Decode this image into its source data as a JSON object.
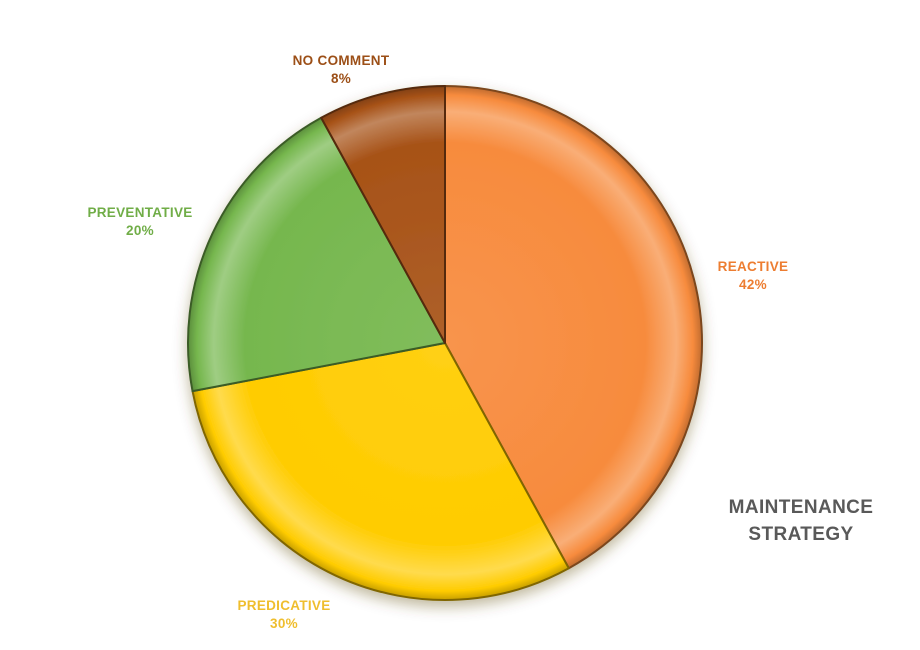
{
  "page": {
    "background_color": "#ffffff"
  },
  "chart_data": {
    "type": "pie",
    "title": "MAINTENANCE STRATEGY",
    "title_color": "#595959",
    "legend_position": "none",
    "start_angle_deg": 0,
    "direction": "clockwise",
    "total": 100,
    "slices": [
      {
        "label": "REACTIVE",
        "pct_label": "42%",
        "value": 42,
        "color": "#F78B3D",
        "label_color": "#ED7D31"
      },
      {
        "label": "PREDICATIVE",
        "pct_label": "30%",
        "value": 30,
        "color": "#FFCC00",
        "label_color": "#EFBE2E"
      },
      {
        "label": "PREVENTATIVE",
        "pct_label": "20%",
        "value": 20,
        "color": "#76B74E",
        "label_color": "#70AD47"
      },
      {
        "label": "NO COMMENT",
        "pct_label": "8%",
        "value": 8,
        "color": "#A75217",
        "label_color": "#9C4F17"
      }
    ]
  }
}
